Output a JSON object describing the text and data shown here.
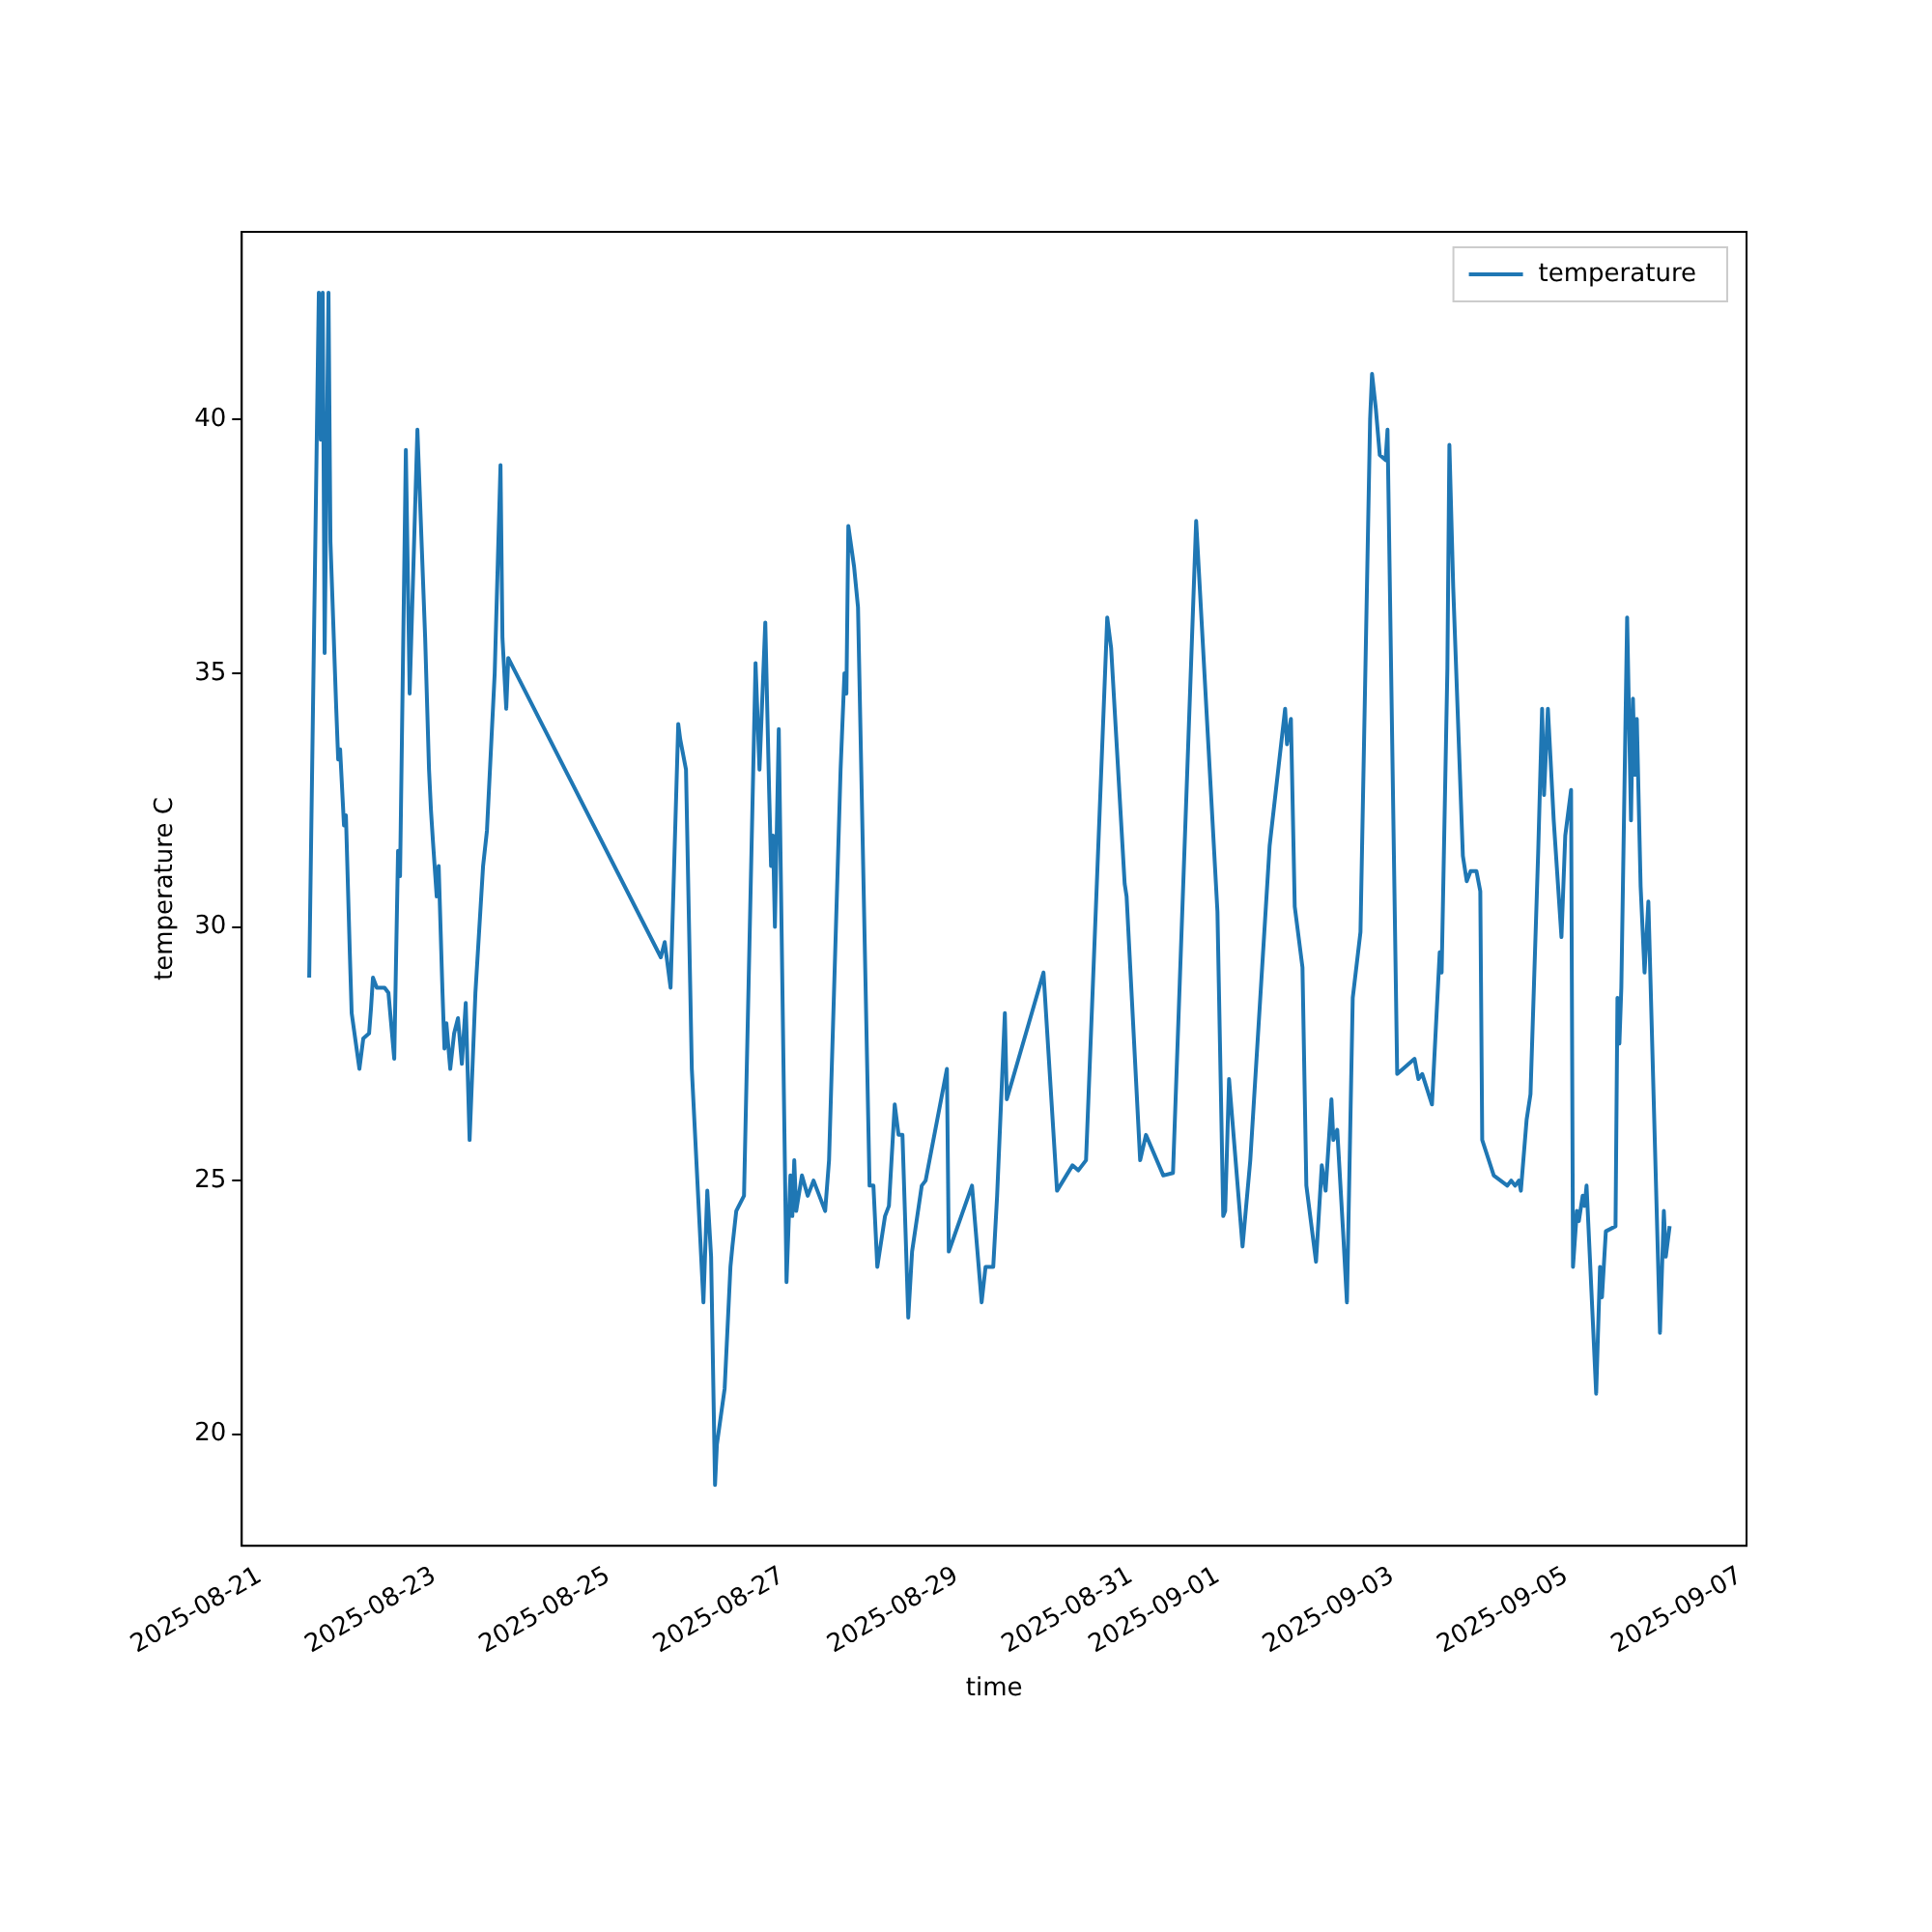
{
  "chart_data": {
    "type": "line",
    "xlabel": "time",
    "ylabel": "temperature C",
    "legend": "top right",
    "xlim": [
      "2025-08-20T19:00",
      "2025-09-07T01:40"
    ],
    "xticks": [
      "2025-08-21",
      "2025-08-23",
      "2025-08-25",
      "2025-08-27",
      "2025-08-29",
      "2025-08-31",
      "2025-09-01",
      "2025-09-03",
      "2025-09-05",
      "2025-09-07"
    ],
    "ylim": [
      17.8,
      43.7
    ],
    "yticks": [
      20,
      25,
      30,
      35,
      40
    ],
    "x": [
      "2025-08-21T13:35",
      "2025-08-21T16:14",
      "2025-08-21T16:46",
      "2025-08-21T17:18",
      "2025-08-21T17:50",
      "2025-08-21T18:54",
      "2025-08-21T19:26",
      "2025-08-21T21:02",
      "2025-08-21T21:34",
      "2025-08-21T22:06",
      "2025-08-21T23:10",
      "2025-08-21T23:42",
      "2025-08-22T00:46",
      "2025-08-22T01:17",
      "2025-08-22T03:25",
      "2025-08-22T04:29",
      "2025-08-22T06:05",
      "2025-08-22T06:37",
      "2025-08-22T07:09",
      "2025-08-22T08:13",
      "2025-08-22T10:21",
      "2025-08-22T11:25",
      "2025-08-22T13:01",
      "2025-08-22T14:04",
      "2025-08-22T14:37",
      "2025-08-22T16:13",
      "2025-08-22T17:16",
      "2025-08-22T19:24",
      "2025-08-22T21:32",
      "2025-08-22T22:36",
      "2025-08-22T23:08",
      "2025-08-22T23:40",
      "2025-08-23T00:43",
      "2025-08-23T01:16",
      "2025-08-23T02:19",
      "2025-08-23T02:51",
      "2025-08-23T03:23",
      "2025-08-23T04:27",
      "2025-08-23T05:31",
      "2025-08-23T06:35",
      "2025-08-23T07:39",
      "2025-08-23T08:43",
      "2025-08-23T09:47",
      "2025-08-23T11:23",
      "2025-08-23T13:30",
      "2025-08-23T14:34",
      "2025-08-23T16:42",
      "2025-08-23T18:18",
      "2025-08-23T18:50",
      "2025-08-23T19:53",
      "2025-08-23T20:26",
      "2025-08-25T14:29",
      "2025-08-25T15:33",
      "2025-08-25T17:10",
      "2025-08-25T19:17",
      "2025-08-25T19:49",
      "2025-08-25T21:25",
      "2025-08-25T23:01",
      "2025-08-26T02:13",
      "2025-08-26T03:17",
      "2025-08-26T04:20",
      "2025-08-26T05:25",
      "2025-08-26T05:56",
      "2025-08-26T08:04",
      "2025-08-26T09:40",
      "2025-08-26T10:12",
      "2025-08-26T11:16",
      "2025-08-26T13:24",
      "2025-08-26T16:35",
      "2025-08-26T17:40",
      "2025-08-26T19:16",
      "2025-08-26T20:19",
      "2025-08-26T20:51",
      "2025-08-26T21:23",
      "2025-08-26T21:55",
      "2025-08-26T22:59",
      "2025-08-27T01:07",
      "2025-08-27T02:11",
      "2025-08-27T02:43",
      "2025-08-27T03:15",
      "2025-08-27T03:47",
      "2025-08-27T05:22",
      "2025-08-27T06:58",
      "2025-08-27T08:34",
      "2025-08-27T09:38",
      "2025-08-27T11:46",
      "2025-08-27T12:50",
      "2025-08-27T16:01",
      "2025-08-27T17:05",
      "2025-08-27T17:37",
      "2025-08-27T18:09",
      "2025-08-27T19:44",
      "2025-08-27T20:49",
      "2025-08-28T00:00",
      "2025-08-28T01:04",
      "2025-08-28T02:08",
      "2025-08-28T04:16",
      "2025-08-28T05:20",
      "2025-08-28T06:56",
      "2025-08-28T07:59",
      "2025-08-28T09:04",
      "2025-08-28T10:40",
      "2025-08-28T11:43",
      "2025-08-28T14:23",
      "2025-08-28T15:27",
      "2025-08-28T21:19",
      "2025-08-28T21:50",
      "2025-08-29T04:14",
      "2025-08-29T06:53",
      "2025-08-29T07:58",
      "2025-08-29T10:05",
      "2025-08-29T11:09",
      "2025-08-29T13:17",
      "2025-08-29T13:49",
      "2025-08-29T23:56",
      "2025-08-30T03:40",
      "2025-08-30T07:55",
      "2025-08-30T09:31",
      "2025-08-30T11:39",
      "2025-08-30T17:30",
      "2025-08-30T18:34",
      "2025-08-30T22:18",
      "2025-08-30T22:50",
      "2025-08-31T02:34",
      "2025-08-31T04:10",
      "2025-08-31T08:57",
      "2025-08-31T11:37",
      "2025-08-31T18:00",
      "2025-08-31T23:52",
      "2025-09-01T01:28",
      "2025-09-01T02:00",
      "2025-09-01T03:04",
      "2025-09-01T06:47",
      "2025-09-01T08:55",
      "2025-09-01T14:15",
      "2025-09-01T18:31",
      "2025-09-01T19:02",
      "2025-09-01T20:07",
      "2025-09-01T21:10",
      "2025-09-01T23:18",
      "2025-09-02T00:22",
      "2025-09-02T03:02",
      "2025-09-02T04:37",
      "2025-09-02T05:41",
      "2025-09-02T07:17",
      "2025-09-02T07:49",
      "2025-09-02T08:53",
      "2025-09-02T10:29",
      "2025-09-02T11:33",
      "2025-09-02T13:09",
      "2025-09-02T15:17",
      "2025-09-02T17:56",
      "2025-09-02T18:28",
      "2025-09-02T19:32",
      "2025-09-02T20:36",
      "2025-09-02T22:12",
      "2025-09-02T22:44",
      "2025-09-03T01:24",
      "2025-09-03T06:11",
      "2025-09-03T07:15",
      "2025-09-03T08:19",
      "2025-09-03T10:59",
      "2025-09-03T13:07",
      "2025-09-03T13:39",
      "2025-09-03T15:14",
      "2025-09-03T15:47",
      "2025-09-03T16:50",
      "2025-09-03T19:30",
      "2025-09-03T20:34",
      "2025-09-03T21:38",
      "2025-09-03T23:14",
      "2025-09-04T00:18",
      "2025-09-04T00:50",
      "2025-09-04T04:01",
      "2025-09-04T07:45",
      "2025-09-04T08:49",
      "2025-09-04T09:53",
      "2025-09-04T10:56",
      "2025-09-04T11:29",
      "2025-09-04T13:04",
      "2025-09-04T14:08",
      "2025-09-04T16:16",
      "2025-09-04T17:20",
      "2025-09-04T17:52",
      "2025-09-04T18:56",
      "2025-09-04T20:32",
      "2025-09-04T22:40",
      "2025-09-04T23:43",
      "2025-09-05T01:19",
      "2025-09-05T01:51",
      "2025-09-05T02:55",
      "2025-09-05T03:27",
      "2025-09-05T04:31",
      "2025-09-05T05:03",
      "2025-09-05T05:35",
      "2025-09-05T08:14",
      "2025-09-05T09:18",
      "2025-09-05T09:50",
      "2025-09-05T10:54",
      "2025-09-05T13:34",
      "2025-09-05T14:06",
      "2025-09-05T14:38",
      "2025-09-05T15:10",
      "2025-09-05T16:46",
      "2025-09-05T17:50",
      "2025-09-05T18:22",
      "2025-09-05T18:54",
      "2025-09-05T19:26",
      "2025-09-05T20:29",
      "2025-09-05T21:34",
      "2025-09-05T22:37",
      "2025-09-06T01:49",
      "2025-09-06T02:53",
      "2025-09-06T03:25",
      "2025-09-06T04:29"
    ],
    "series": [
      {
        "name": "temperature",
        "color": "#1f77b4",
        "values": [
          29.0,
          42.5,
          39.6,
          42.5,
          35.4,
          42.5,
          37.6,
          34.3,
          33.3,
          33.5,
          32.0,
          32.2,
          29.5,
          28.3,
          27.2,
          27.8,
          27.9,
          28.4,
          29.0,
          28.8,
          28.8,
          28.7,
          27.4,
          31.5,
          31.0,
          39.4,
          34.6,
          39.8,
          35.7,
          33.1,
          32.3,
          31.7,
          30.6,
          31.2,
          28.7,
          27.6,
          28.1,
          27.2,
          27.9,
          28.2,
          27.3,
          28.5,
          25.8,
          28.7,
          31.2,
          31.9,
          35.0,
          39.1,
          35.7,
          34.3,
          35.3,
          29.4,
          29.7,
          28.8,
          34.0,
          33.7,
          33.1,
          27.2,
          22.6,
          24.8,
          23.5,
          19.0,
          19.8,
          20.9,
          23.3,
          23.7,
          24.4,
          24.7,
          35.2,
          33.1,
          36.0,
          32.7,
          31.2,
          31.8,
          30.0,
          33.9,
          23.0,
          25.1,
          24.3,
          25.4,
          24.4,
          25.1,
          24.7,
          25.0,
          24.8,
          24.4,
          25.4,
          33.1,
          35.0,
          34.6,
          37.9,
          37.1,
          36.3,
          24.9,
          24.9,
          23.3,
          24.3,
          24.5,
          26.5,
          25.9,
          25.9,
          22.3,
          23.6,
          24.9,
          25.0,
          27.2,
          23.6,
          24.9,
          22.6,
          23.3,
          23.3,
          24.7,
          28.3,
          26.6,
          29.1,
          24.8,
          25.3,
          25.2,
          25.4,
          36.1,
          35.5,
          30.85,
          30.6,
          25.4,
          25.9,
          25.1,
          25.15,
          38.0,
          30.3,
          24.3,
          24.4,
          27.0,
          23.7,
          25.4,
          31.6,
          34.3,
          33.6,
          34.1,
          30.4,
          29.2,
          24.9,
          23.4,
          25.3,
          24.8,
          26.6,
          25.8,
          26.0,
          24.0,
          22.6,
          28.6,
          29.9,
          40.0,
          40.9,
          40.2,
          39.3,
          39.2,
          39.8,
          27.1,
          27.4,
          27.0,
          27.1,
          26.5,
          29.5,
          29.1,
          35.1,
          39.5,
          36.7,
          31.4,
          30.9,
          31.1,
          31.1,
          30.7,
          25.8,
          25.1,
          24.9,
          25.0,
          24.9,
          25.0,
          24.8,
          26.2,
          26.7,
          31.5,
          34.3,
          32.6,
          34.3,
          32.1,
          29.8,
          31.8,
          32.7,
          23.3,
          24.4,
          24.2,
          24.7,
          24.5,
          24.9,
          20.8,
          23.3,
          22.7,
          24.0,
          24.1,
          28.6,
          27.7,
          28.8,
          36.1,
          32.1,
          34.5,
          33.0,
          34.1,
          30.8,
          29.1,
          30.5,
          22.0,
          24.4,
          23.5,
          24.1
        ]
      }
    ]
  }
}
